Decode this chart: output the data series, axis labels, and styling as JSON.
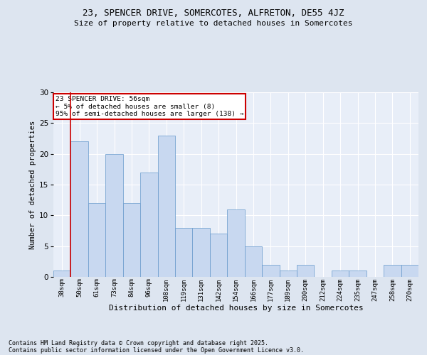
{
  "title1": "23, SPENCER DRIVE, SOMERCOTES, ALFRETON, DE55 4JZ",
  "title2": "Size of property relative to detached houses in Somercotes",
  "xlabel": "Distribution of detached houses by size in Somercotes",
  "ylabel": "Number of detached properties",
  "categories": [
    "38sqm",
    "50sqm",
    "61sqm",
    "73sqm",
    "84sqm",
    "96sqm",
    "108sqm",
    "119sqm",
    "131sqm",
    "142sqm",
    "154sqm",
    "166sqm",
    "177sqm",
    "189sqm",
    "200sqm",
    "212sqm",
    "224sqm",
    "235sqm",
    "247sqm",
    "258sqm",
    "270sqm"
  ],
  "values": [
    1,
    22,
    12,
    20,
    12,
    17,
    23,
    8,
    8,
    7,
    11,
    5,
    2,
    1,
    2,
    0,
    1,
    1,
    0,
    2,
    2
  ],
  "bar_color": "#c8d8f0",
  "bar_edge_color": "#6699cc",
  "highlight_index": 1,
  "highlight_line_color": "#cc0000",
  "annotation_title": "23 SPENCER DRIVE: 56sqm",
  "annotation_line1": "← 5% of detached houses are smaller (8)",
  "annotation_line2": "95% of semi-detached houses are larger (138) →",
  "annotation_box_color": "#cc0000",
  "ylim": [
    0,
    30
  ],
  "yticks": [
    0,
    5,
    10,
    15,
    20,
    25,
    30
  ],
  "footer1": "Contains HM Land Registry data © Crown copyright and database right 2025.",
  "footer2": "Contains public sector information licensed under the Open Government Licence v3.0.",
  "bg_color": "#dde5f0",
  "plot_bg_color": "#e8eef8"
}
